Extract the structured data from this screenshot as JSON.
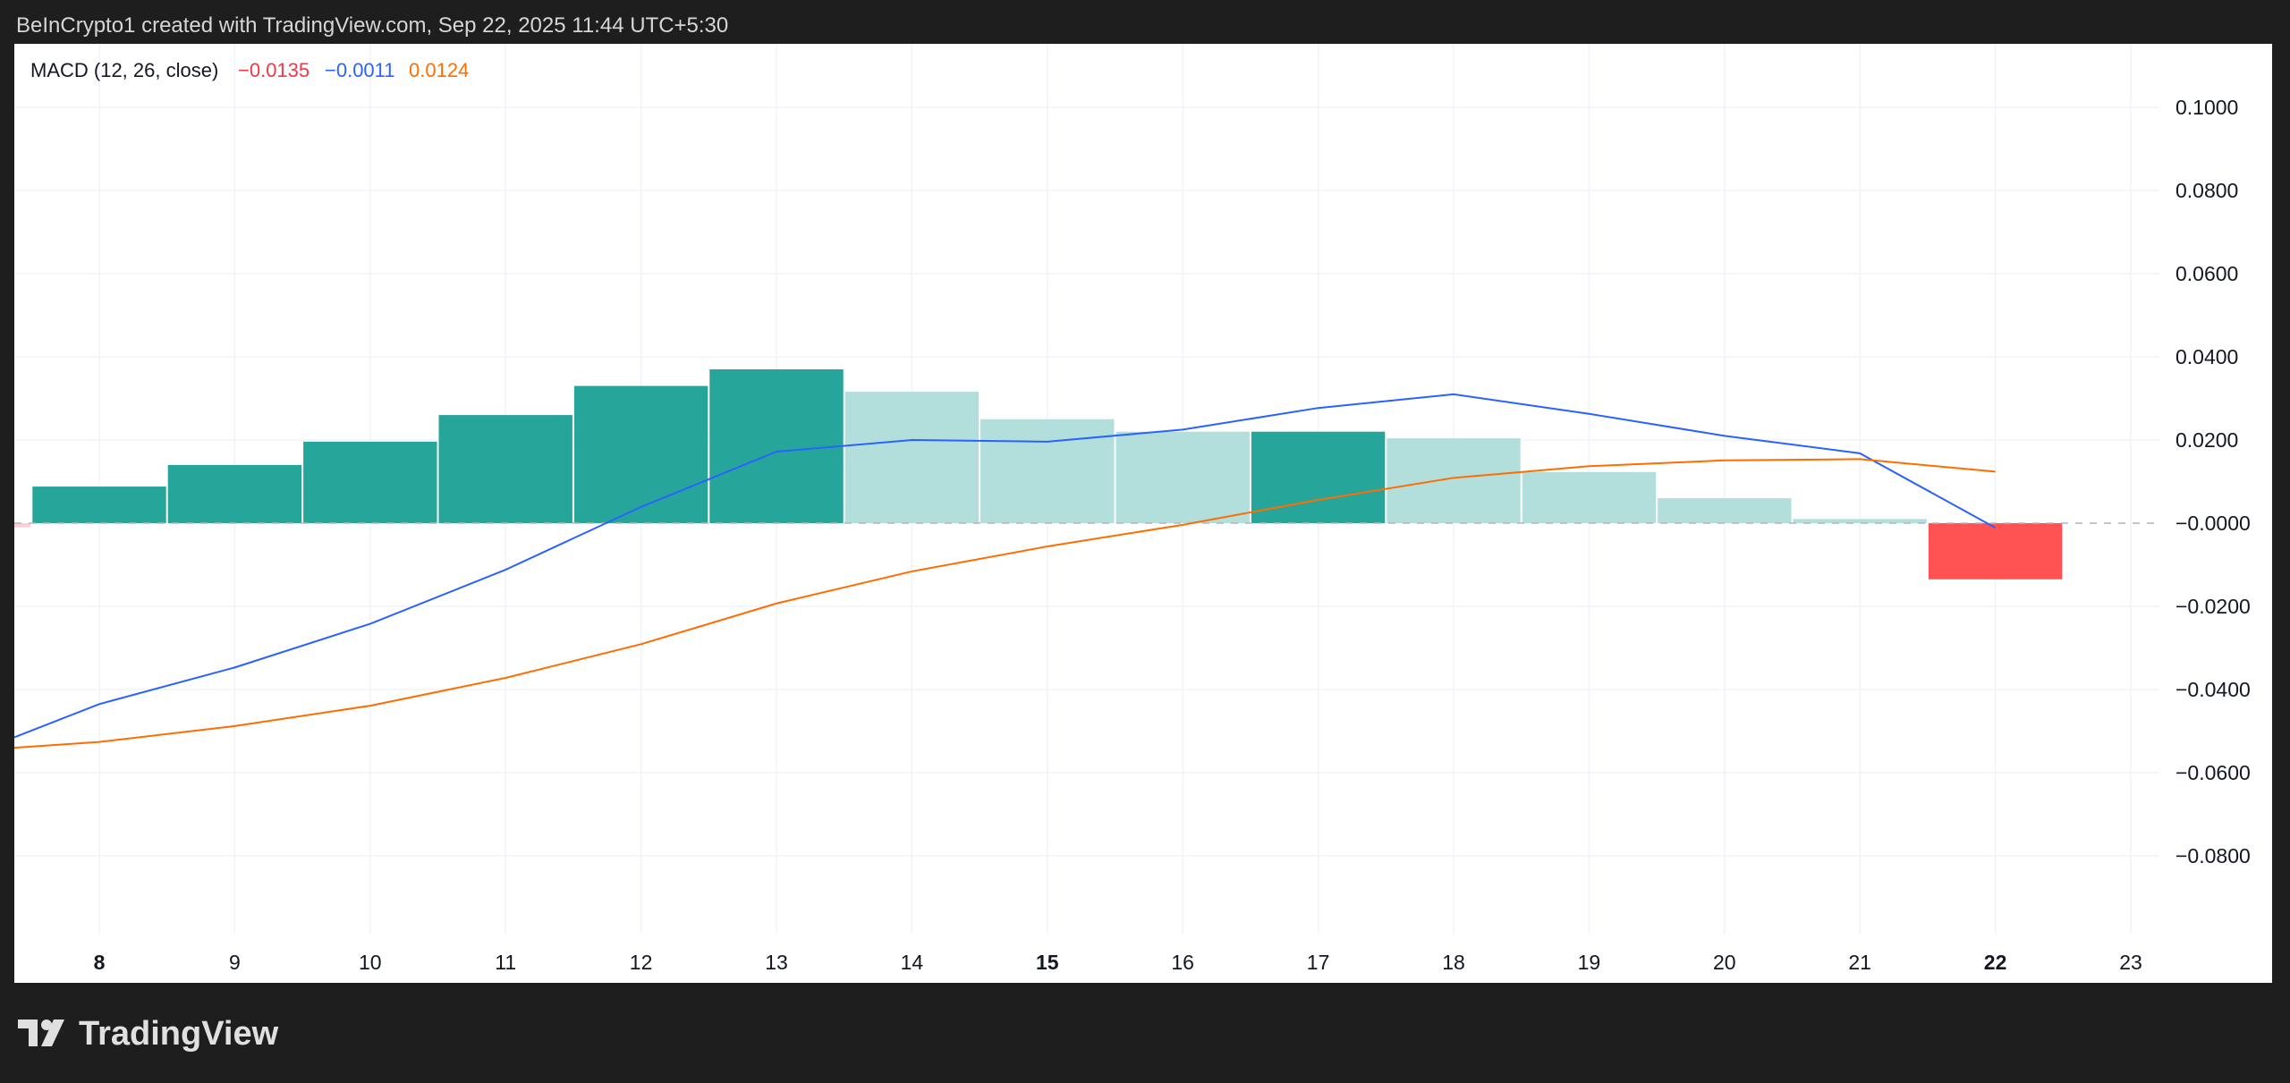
{
  "header": {
    "caption": "BeInCrypto1 created with TradingView.com, Sep 22, 2025 11:44 UTC+5:30"
  },
  "legend": {
    "name": "MACD (12, 26, close)",
    "hist_value": "−0.0135",
    "macd_value": "−0.0011",
    "signal_value": "0.0124"
  },
  "footer": {
    "brand": "TradingView",
    "logo_icon": "tradingview-logo-icon"
  },
  "colors": {
    "hist_up_strong": "#26a69a",
    "hist_up_weak": "#b2dfdb",
    "hist_down_strong": "#ff5252",
    "hist_down_weak": "#ffcdd2",
    "macd": "#2962ff",
    "signal": "#ff6d00",
    "hist_label": "#f23645",
    "macd_label": "#2962ff",
    "signal_label": "#ff6d00"
  },
  "chart_data": {
    "type": "bar",
    "title": "MACD (12, 26, close)",
    "xlabel": "",
    "ylabel": "",
    "x_ticks": [
      {
        "v": 8,
        "label": "8",
        "bold": true
      },
      {
        "v": 9,
        "label": "9"
      },
      {
        "v": 10,
        "label": "10"
      },
      {
        "v": 11,
        "label": "11"
      },
      {
        "v": 12,
        "label": "12"
      },
      {
        "v": 13,
        "label": "13"
      },
      {
        "v": 14,
        "label": "14"
      },
      {
        "v": 15,
        "label": "15",
        "bold": true
      },
      {
        "v": 16,
        "label": "16"
      },
      {
        "v": 17,
        "label": "17"
      },
      {
        "v": 18,
        "label": "18"
      },
      {
        "v": 19,
        "label": "19"
      },
      {
        "v": 20,
        "label": "20"
      },
      {
        "v": 21,
        "label": "21"
      },
      {
        "v": 22,
        "label": "22",
        "bold": true
      },
      {
        "v": 23,
        "label": "23"
      }
    ],
    "y_ticks": [
      {
        "v": 0.1,
        "label": "0.1000"
      },
      {
        "v": 0.08,
        "label": "0.0800"
      },
      {
        "v": 0.06,
        "label": "0.0600"
      },
      {
        "v": 0.04,
        "label": "0.0400"
      },
      {
        "v": 0.02,
        "label": "0.0200"
      },
      {
        "v": 0,
        "label": "−0.0000"
      },
      {
        "v": -0.02,
        "label": "−0.0200"
      },
      {
        "v": -0.04,
        "label": "−0.0400"
      },
      {
        "v": -0.06,
        "label": "−0.0600"
      },
      {
        "v": -0.08,
        "label": "−0.0800"
      }
    ],
    "ylim": [
      -0.098,
      0.114
    ],
    "xlim": [
      7.4,
      23.3
    ],
    "series": [
      {
        "name": "Histogram",
        "kind": "bar",
        "x": [
          7,
          8,
          9,
          10,
          11,
          12,
          13,
          14,
          15,
          16,
          17,
          18,
          19,
          20,
          21,
          22
        ],
        "values": [
          -0.001,
          0.0088,
          0.014,
          0.0196,
          0.026,
          0.033,
          0.037,
          0.0316,
          0.025,
          0.022,
          0.022,
          0.0204,
          0.0123,
          0.006,
          0.001,
          -0.0135
        ]
      },
      {
        "name": "MACD",
        "kind": "line",
        "x": [
          7.4,
          8,
          9,
          10,
          11,
          12,
          13,
          14,
          15,
          16,
          17,
          18,
          19,
          20,
          21,
          22
        ],
        "values": [
          -0.0515,
          -0.0435,
          -0.0347,
          -0.0242,
          -0.0112,
          0.0039,
          0.0172,
          0.02,
          0.0196,
          0.0225,
          0.0277,
          0.031,
          0.0263,
          0.021,
          0.0168,
          -0.0011
        ]
      },
      {
        "name": "Signal",
        "kind": "line",
        "x": [
          7.4,
          8,
          9,
          10,
          11,
          12,
          13,
          14,
          15,
          16,
          17,
          18,
          19,
          20,
          21,
          22
        ],
        "values": [
          -0.054,
          -0.0526,
          -0.0488,
          -0.0439,
          -0.0372,
          -0.0291,
          -0.0193,
          -0.0116,
          -0.0056,
          -0.0004,
          0.0056,
          0.0109,
          0.0137,
          0.0151,
          0.0154,
          0.0124
        ]
      }
    ]
  }
}
